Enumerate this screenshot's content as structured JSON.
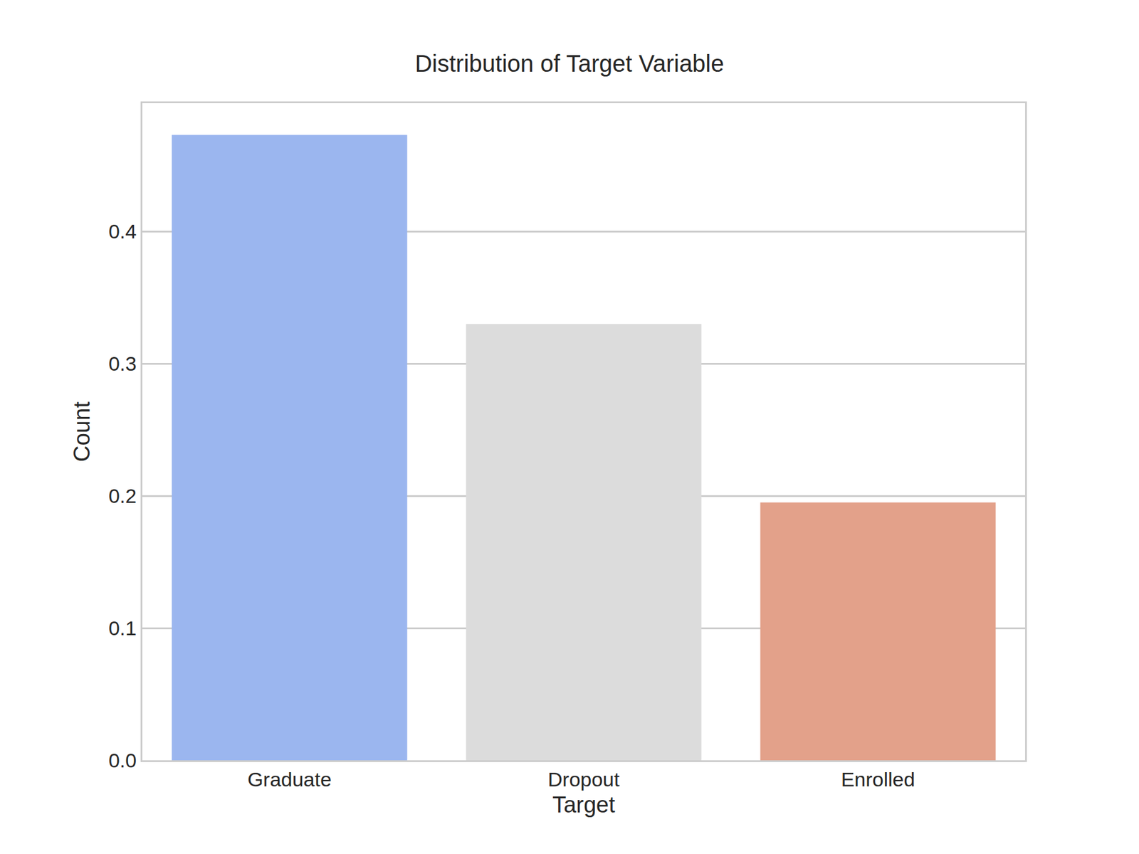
{
  "chart_data": {
    "type": "bar",
    "title": "Distribution of Target Variable",
    "x_label": "Target",
    "y_label": "Count",
    "categories": [
      "Graduate",
      "Dropout",
      "Enrolled"
    ],
    "values": [
      0.473,
      0.33,
      0.195
    ],
    "colors": [
      "#9bb6ef",
      "#dcdcdc",
      "#e3a18a"
    ],
    "ylim": [
      0,
      0.497
    ],
    "yticks": [
      {
        "value": 0,
        "label": "0.0"
      },
      0.1,
      0.2,
      0.3,
      0.4
    ],
    "grid": true
  }
}
